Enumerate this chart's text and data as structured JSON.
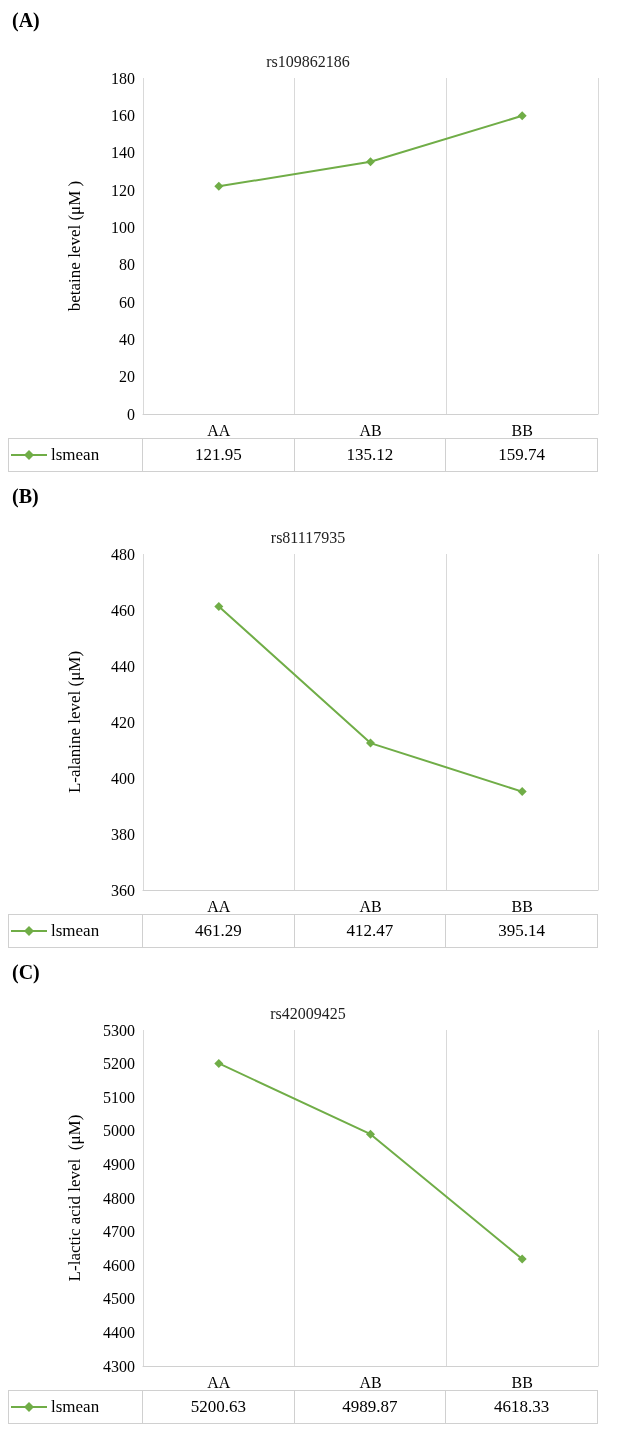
{
  "chart_data": [
    {
      "type": "line",
      "annotations": [
        "(A)"
      ],
      "title": "rs109862186",
      "ylabel": "betaine level (μM )",
      "categories": [
        "AA",
        "AB",
        "BB"
      ],
      "series": [
        {
          "name": "lsmean",
          "color": "#70ad47",
          "values": [
            121.95,
            135.12,
            159.74
          ]
        }
      ],
      "ylim": [
        0,
        180
      ],
      "yticks": [
        0,
        20,
        40,
        60,
        80,
        100,
        120,
        140,
        160,
        180
      ],
      "grid": "x",
      "marker": "diamond",
      "data_labels": true,
      "legend": "bottom left"
    },
    {
      "type": "line",
      "annotations": [
        "(B)"
      ],
      "title": "rs81117935",
      "ylabel": "L-alanine level (μM)",
      "categories": [
        "AA",
        "AB",
        "BB"
      ],
      "series": [
        {
          "name": "lsmean",
          "color": "#70ad47",
          "values": [
            461.29,
            412.47,
            395.14
          ]
        }
      ],
      "ylim": [
        360,
        480
      ],
      "yticks": [
        360,
        380,
        400,
        420,
        440,
        460,
        480
      ],
      "grid": "x",
      "marker": "diamond",
      "data_labels": true,
      "legend": "bottom left"
    },
    {
      "type": "line",
      "annotations": [
        "(C)"
      ],
      "title": "rs42009425",
      "ylabel": "L-lactic acid level  (μM)",
      "categories": [
        "AA",
        "AB",
        "BB"
      ],
      "series": [
        {
          "name": "lsmean",
          "color": "#70ad47",
          "values": [
            5200.63,
            4989.87,
            4618.33
          ]
        }
      ],
      "ylim": [
        4300,
        5300
      ],
      "yticks": [
        4300,
        4400,
        4500,
        4600,
        4700,
        4800,
        4900,
        5000,
        5100,
        5200,
        5300
      ],
      "grid": "x",
      "marker": "diamond",
      "data_labels": true,
      "legend": "bottom left"
    }
  ]
}
